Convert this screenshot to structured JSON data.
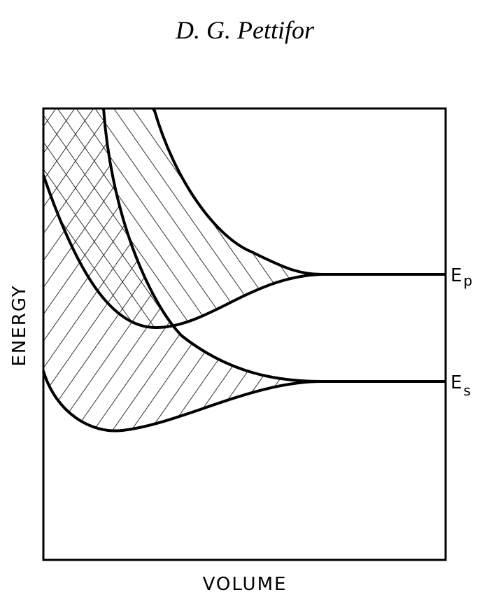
{
  "header": {
    "author": "D. G. Pettifor"
  },
  "axes": {
    "y_label": "ENERGY",
    "x_label": "VOLUME"
  },
  "levels": [
    {
      "symbol": "E",
      "subscript": "p"
    },
    {
      "symbol": "E",
      "subscript": "s"
    }
  ]
}
